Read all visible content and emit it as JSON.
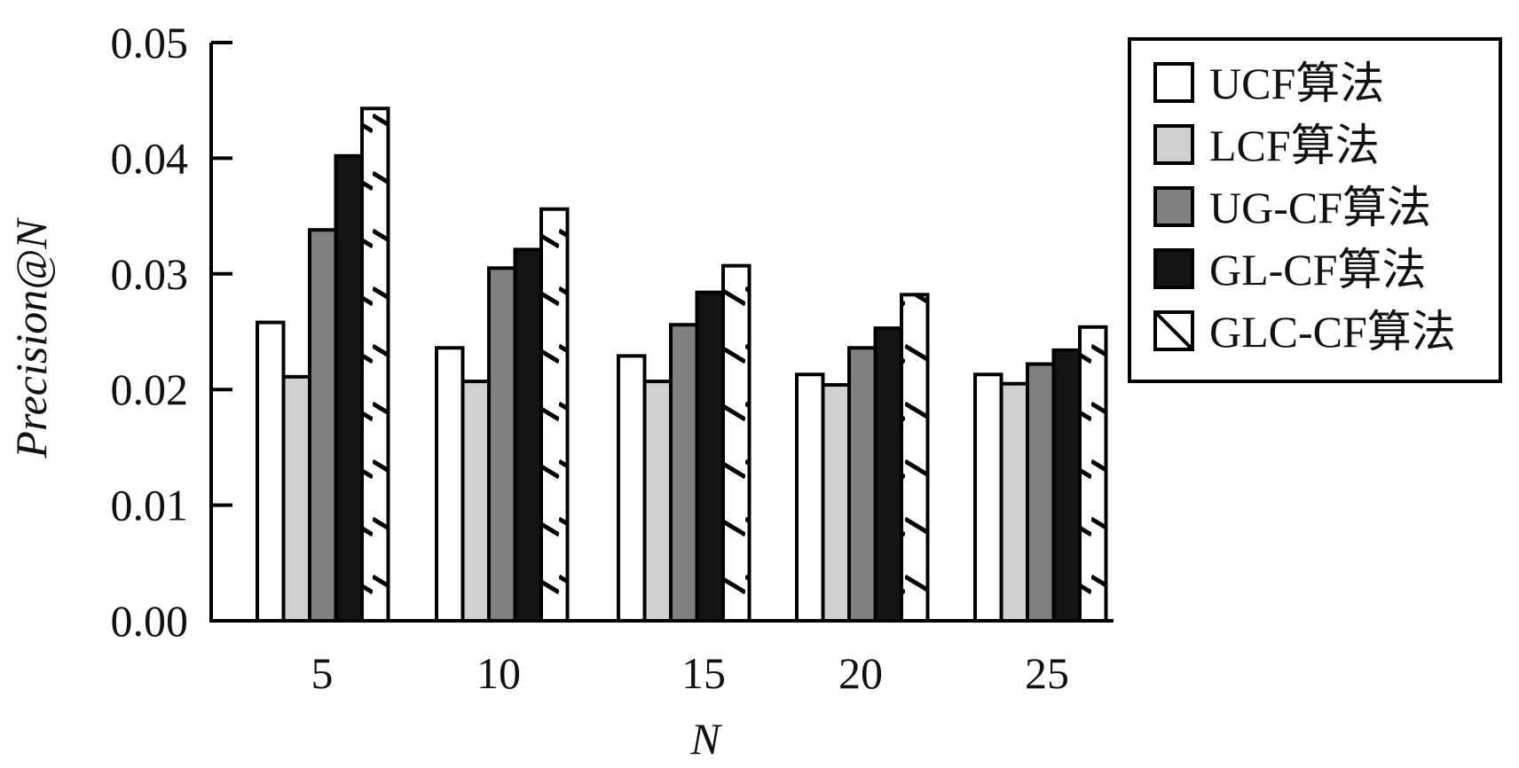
{
  "chart_data": {
    "type": "bar",
    "categories": [
      "5",
      "10",
      "15",
      "20",
      "25"
    ],
    "series": [
      {
        "name": "UCF算法",
        "values": [
          0.0258,
          0.0236,
          0.0229,
          0.0213,
          0.0213
        ],
        "fill": "#ffffff",
        "pattern": "none"
      },
      {
        "name": "LCF算法",
        "values": [
          0.0211,
          0.0207,
          0.0207,
          0.0204,
          0.0205
        ],
        "fill": "#d0d0d0",
        "pattern": "none"
      },
      {
        "name": "UG-CF算法",
        "values": [
          0.0338,
          0.0305,
          0.0256,
          0.0236,
          0.0222
        ],
        "fill": "#808080",
        "pattern": "none"
      },
      {
        "name": "GL-CF算法",
        "values": [
          0.0402,
          0.0321,
          0.0284,
          0.0253,
          0.0234
        ],
        "fill": "#141414",
        "pattern": "none"
      },
      {
        "name": "GLC-CF算法",
        "values": [
          0.0443,
          0.0356,
          0.0307,
          0.0282,
          0.0254
        ],
        "fill": "#ffffff",
        "pattern": "diagonal-hatch"
      }
    ],
    "xlabel": "N",
    "ylabel": "Precision@N",
    "ylim": [
      0,
      0.05
    ],
    "yticks": [
      "0.00",
      "0.01",
      "0.02",
      "0.03",
      "0.04",
      "0.05"
    ],
    "grid": false,
    "legend_position": "top-right"
  }
}
